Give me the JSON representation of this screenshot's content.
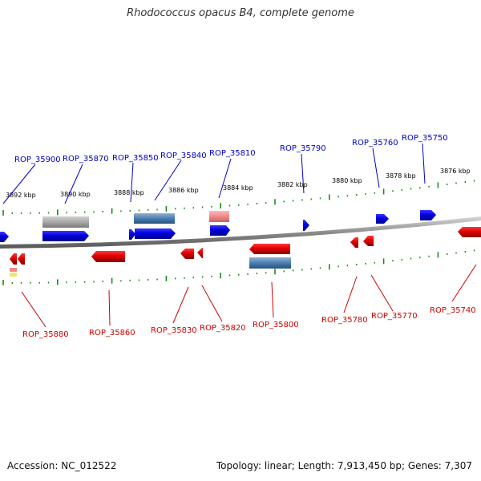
{
  "title": "Rhodococcus opacus B4, complete genome",
  "footer": {
    "accession": "Accession: NC_012522",
    "summary": "Topology: linear; Length: 7,913,450 bp; Genes: 7,307"
  },
  "colors": {
    "forward_gene": "#0000e6",
    "reverse_gene": "#e60000",
    "feature_gray": "#aaaaaa",
    "feature_blue": "#4a7eb0",
    "feature_pink": "#f08a8a",
    "feature_yellow": "#f0e27a",
    "backbone": "#8c8c8c",
    "scale_ticks": "#1a8a1a",
    "label_forward": "#0000c8",
    "label_reverse": "#d00000"
  },
  "scale_labels": [
    "3892 kbp",
    "3890 kbp",
    "3888 kbp",
    "3886 kbp",
    "3884 kbp",
    "3882 kbp",
    "3880 kbp",
    "3878 kbp",
    "3876 kbp"
  ],
  "forward_gene_labels": [
    "ROP_35900",
    "ROP_35870",
    "ROP_35850",
    "ROP_35840",
    "ROP_35810",
    "ROP_35790",
    "ROP_35760",
    "ROP_35750"
  ],
  "reverse_gene_labels": [
    "ROP_35880",
    "ROP_35860",
    "ROP_35830",
    "ROP_35820",
    "ROP_35800",
    "ROP_35780",
    "ROP_35770",
    "ROP_35740"
  ]
}
